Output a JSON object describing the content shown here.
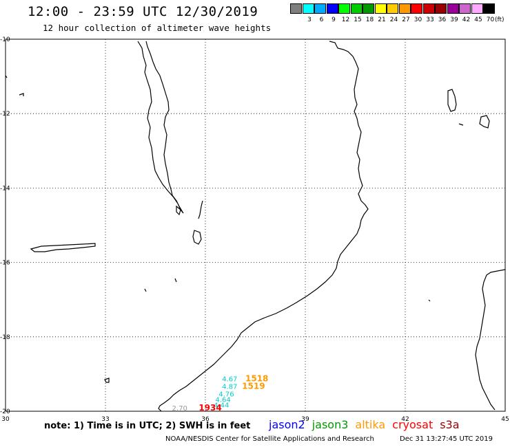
{
  "header": {
    "title": "12:00 - 23:59 UTC 12/30/2019",
    "subtitle": "12 hour collection of altimeter wave heights"
  },
  "legend": {
    "unit": "(ft)",
    "bins": [
      {
        "label": "",
        "color": "#7f7f7f"
      },
      {
        "label": "3",
        "color": "#00ffff"
      },
      {
        "label": "6",
        "color": "#00aaff"
      },
      {
        "label": "9",
        "color": "#0000ff"
      },
      {
        "label": "12",
        "color": "#00ff00"
      },
      {
        "label": "15",
        "color": "#00cc00"
      },
      {
        "label": "18",
        "color": "#009900"
      },
      {
        "label": "21",
        "color": "#ffff00"
      },
      {
        "label": "24",
        "color": "#ffcc00"
      },
      {
        "label": "27",
        "color": "#ff9900"
      },
      {
        "label": "30",
        "color": "#ff0000"
      },
      {
        "label": "33",
        "color": "#cc0000"
      },
      {
        "label": "36",
        "color": "#990000"
      },
      {
        "label": "39",
        "color": "#990099"
      },
      {
        "label": "42",
        "color": "#cc66cc"
      },
      {
        "label": "45",
        "color": "#ffaaff"
      },
      {
        "label": "70",
        "color": "#000000"
      }
    ]
  },
  "map": {
    "lon_range": [
      30,
      45
    ],
    "lat_range": [
      -20,
      -10
    ],
    "lon_ticks": [
      "30",
      "33",
      "36",
      "39",
      "42",
      "45"
    ],
    "lat_ticks": [
      "-10",
      "-12",
      "-14",
      "-16",
      "-18",
      "-20"
    ],
    "grid": "dotted"
  },
  "observations": [
    {
      "value": "4.67",
      "lon": 36.5,
      "lat": -19.2,
      "color": "#00cccc"
    },
    {
      "value": "4.87",
      "lon": 36.5,
      "lat": -19.4,
      "color": "#00cccc"
    },
    {
      "value": "4.76",
      "lon": 36.4,
      "lat": -19.6,
      "color": "#00cccc"
    },
    {
      "value": "4.64",
      "lon": 36.3,
      "lat": -19.75,
      "color": "#00cccc"
    },
    {
      "value": "4.44",
      "lon": 36.25,
      "lat": -19.9,
      "color": "#00cccc"
    },
    {
      "value": "2.70",
      "lon": 35.0,
      "lat": -19.98,
      "color": "#999999"
    }
  ],
  "pass_times": [
    {
      "text": "1518",
      "lon": 37.2,
      "lat": -19.2,
      "color": "#ff9900"
    },
    {
      "text": "1519",
      "lon": 37.1,
      "lat": -19.4,
      "color": "#ff9900"
    },
    {
      "text": "1934",
      "lon": 35.8,
      "lat": -19.98,
      "color": "#ff0000"
    }
  ],
  "footer": {
    "note": "note: 1) Time is in UTC; 2) SWH is in feet",
    "satellites": [
      {
        "name": "jason2",
        "color": "#0000ff"
      },
      {
        "name": "jason3",
        "color": "#009900"
      },
      {
        "name": "altika",
        "color": "#ff9900"
      },
      {
        "name": "cryosat",
        "color": "#ff0000"
      },
      {
        "name": "s3a",
        "color": "#990000"
      }
    ],
    "credit": "NOAA/NESDIS Center for Satellite Applications and Research",
    "timestamp": "Dec 31 13:27:45 UTC 2019"
  }
}
